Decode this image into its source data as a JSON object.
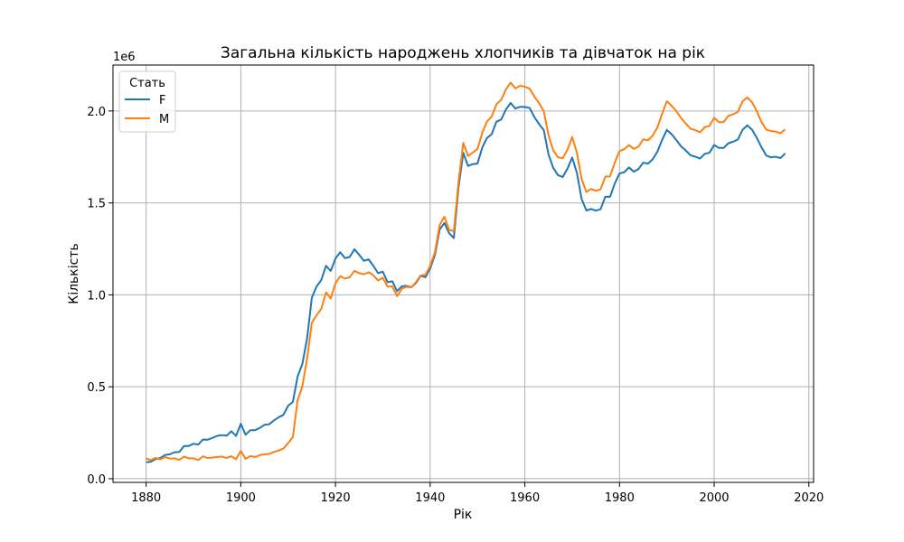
{
  "chart_data": {
    "type": "line",
    "title": "Загальна кількість народжень хлопчиків та дівчаток на рік",
    "xlabel": "Рік",
    "ylabel": "Кількість",
    "y_scale_note": "1e6",
    "xlim": [
      1873,
      2021
    ],
    "ylim": [
      -0.02,
      2.25
    ],
    "x_ticks": [
      1880,
      1900,
      1920,
      1940,
      1960,
      1980,
      2000,
      2020
    ],
    "y_ticks": [
      0.0,
      0.5,
      1.0,
      1.5,
      2.0
    ],
    "y_tick_labels": [
      "0.0",
      "0.5",
      "1.0",
      "1.5",
      "2.0"
    ],
    "grid": true,
    "legend": {
      "title": "Стать",
      "placement": "top-left"
    },
    "x_start": 1880,
    "x_step": 1,
    "series": [
      {
        "name": "F",
        "color": "#1f77b4",
        "values": [
          0.09,
          0.092,
          0.107,
          0.113,
          0.129,
          0.133,
          0.144,
          0.145,
          0.178,
          0.178,
          0.19,
          0.186,
          0.213,
          0.212,
          0.222,
          0.233,
          0.237,
          0.234,
          0.258,
          0.233,
          0.299,
          0.239,
          0.264,
          0.264,
          0.276,
          0.293,
          0.296,
          0.317,
          0.334,
          0.347,
          0.397,
          0.418,
          0.556,
          0.624,
          0.762,
          0.984,
          1.045,
          1.081,
          1.158,
          1.13,
          1.198,
          1.232,
          1.2,
          1.206,
          1.248,
          1.218,
          1.185,
          1.193,
          1.158,
          1.118,
          1.126,
          1.069,
          1.074,
          1.02,
          1.046,
          1.049,
          1.041,
          1.064,
          1.103,
          1.096,
          1.143,
          1.216,
          1.355,
          1.391,
          1.336,
          1.309,
          1.587,
          1.773,
          1.701,
          1.711,
          1.714,
          1.801,
          1.853,
          1.874,
          1.942,
          1.953,
          2.008,
          2.044,
          2.013,
          2.023,
          2.022,
          2.017,
          1.968,
          1.929,
          1.896,
          1.764,
          1.691,
          1.651,
          1.641,
          1.686,
          1.747,
          1.663,
          1.521,
          1.459,
          1.467,
          1.458,
          1.466,
          1.534,
          1.533,
          1.606,
          1.66,
          1.667,
          1.693,
          1.67,
          1.684,
          1.719,
          1.714,
          1.737,
          1.779,
          1.843,
          1.897,
          1.874,
          1.842,
          1.808,
          1.785,
          1.759,
          1.752,
          1.741,
          1.767,
          1.773,
          1.815,
          1.799,
          1.799,
          1.825,
          1.833,
          1.845,
          1.898,
          1.922,
          1.898,
          1.854,
          1.802,
          1.758,
          1.748,
          1.751,
          1.744,
          1.769
        ]
      },
      {
        "name": "M",
        "color": "#ff7f0e",
        "values": [
          0.11,
          0.101,
          0.113,
          0.105,
          0.118,
          0.109,
          0.111,
          0.102,
          0.12,
          0.111,
          0.111,
          0.101,
          0.122,
          0.112,
          0.115,
          0.118,
          0.12,
          0.113,
          0.122,
          0.106,
          0.151,
          0.108,
          0.123,
          0.118,
          0.128,
          0.133,
          0.134,
          0.146,
          0.153,
          0.164,
          0.194,
          0.226,
          0.427,
          0.502,
          0.652,
          0.848,
          0.889,
          0.924,
          1.013,
          0.98,
          1.064,
          1.101,
          1.089,
          1.096,
          1.13,
          1.118,
          1.112,
          1.123,
          1.107,
          1.078,
          1.093,
          1.045,
          1.046,
          0.993,
          1.033,
          1.044,
          1.04,
          1.069,
          1.106,
          1.109,
          1.157,
          1.231,
          1.38,
          1.425,
          1.354,
          1.346,
          1.616,
          1.827,
          1.755,
          1.774,
          1.794,
          1.88,
          1.943,
          1.97,
          2.037,
          2.06,
          2.117,
          2.155,
          2.123,
          2.137,
          2.132,
          2.122,
          2.079,
          2.043,
          1.999,
          1.869,
          1.786,
          1.748,
          1.743,
          1.789,
          1.859,
          1.773,
          1.629,
          1.56,
          1.576,
          1.566,
          1.574,
          1.643,
          1.644,
          1.719,
          1.782,
          1.792,
          1.815,
          1.794,
          1.806,
          1.846,
          1.841,
          1.866,
          1.911,
          1.985,
          2.053,
          2.029,
          1.999,
          1.962,
          1.932,
          1.904,
          1.896,
          1.884,
          1.912,
          1.919,
          1.963,
          1.939,
          1.94,
          1.974,
          1.982,
          1.995,
          2.053,
          2.074,
          2.047,
          1.999,
          1.939,
          1.899,
          1.891,
          1.888,
          1.879,
          1.9
        ]
      }
    ]
  }
}
